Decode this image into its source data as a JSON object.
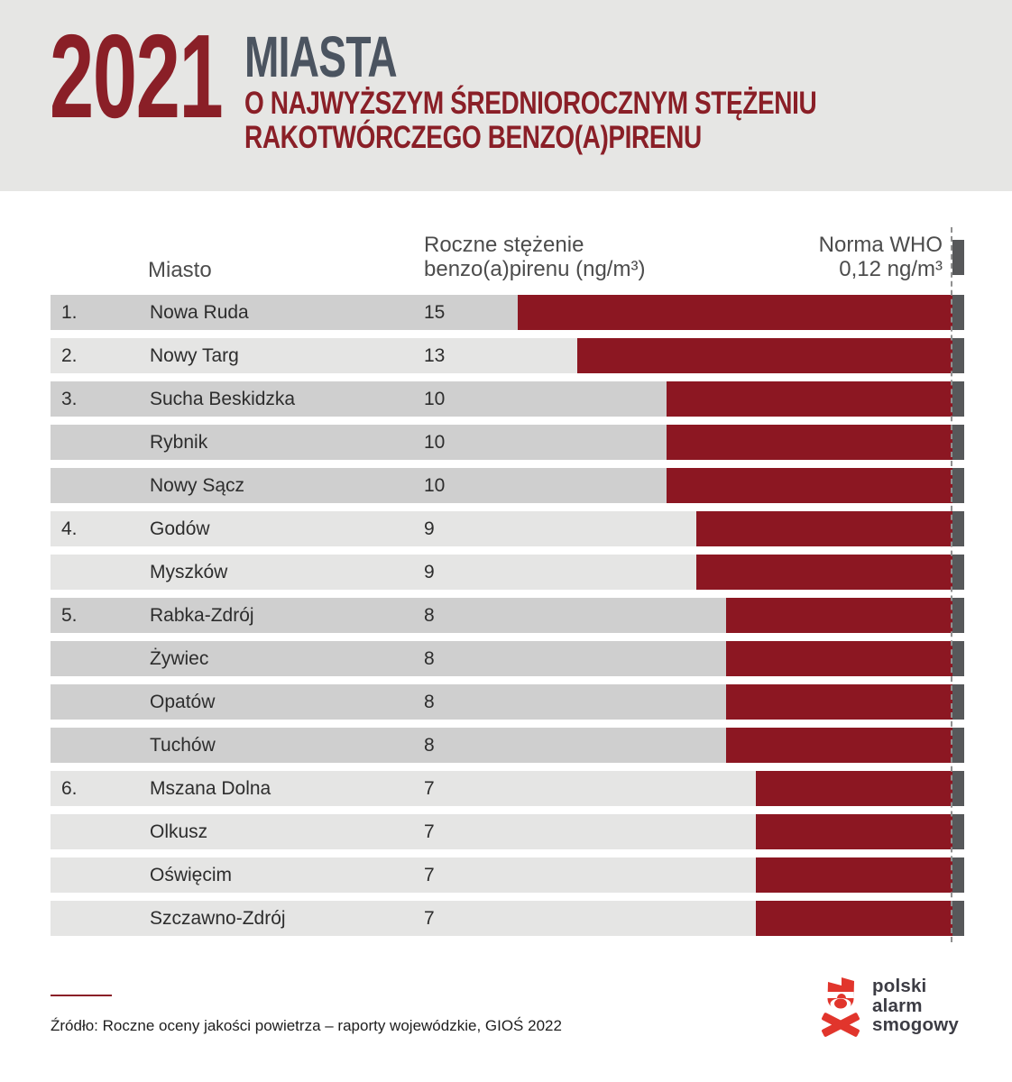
{
  "header": {
    "year": "2021",
    "title": "MIASTA",
    "subtitle_line1": "O NAJWYŻSZYM ŚREDNIOROCZNYM STĘŻENIU",
    "subtitle_line2": "RAKOTWÓRCZEGO BENZO(A)PIRENU"
  },
  "columns": {
    "city": "Miasto",
    "value_line1": "Roczne stężenie",
    "value_line2": "benzo(a)pirenu (ng/m³)",
    "norm_line1": "Norma WHO",
    "norm_line2": "0,12 ng/m³"
  },
  "rows": [
    {
      "rank": "1.",
      "city": "Nowa Ruda",
      "value": 15,
      "group": 1
    },
    {
      "rank": "2.",
      "city": "Nowy Targ",
      "value": 13,
      "group": 2
    },
    {
      "rank": "3.",
      "city": "Sucha Beskidzka",
      "value": 10,
      "group": 3
    },
    {
      "rank": "",
      "city": "Rybnik",
      "value": 10,
      "group": 3
    },
    {
      "rank": "",
      "city": "Nowy Sącz",
      "value": 10,
      "group": 3
    },
    {
      "rank": "4.",
      "city": "Godów",
      "value": 9,
      "group": 4
    },
    {
      "rank": "",
      "city": "Myszków",
      "value": 9,
      "group": 4
    },
    {
      "rank": "5.",
      "city": "Rabka-Zdrój",
      "value": 8,
      "group": 5
    },
    {
      "rank": "",
      "city": "Żywiec",
      "value": 8,
      "group": 5
    },
    {
      "rank": "",
      "city": "Opatów",
      "value": 8,
      "group": 5
    },
    {
      "rank": "",
      "city": "Tuchów",
      "value": 8,
      "group": 5
    },
    {
      "rank": "6.",
      "city": "Mszana Dolna",
      "value": 7,
      "group": 6
    },
    {
      "rank": "",
      "city": "Olkusz",
      "value": 7,
      "group": 6
    },
    {
      "rank": "",
      "city": "Oświęcim",
      "value": 7,
      "group": 6
    },
    {
      "rank": "",
      "city": "Szczawno-Zdrój",
      "value": 7,
      "group": 6
    }
  ],
  "chart_data": {
    "type": "bar",
    "orientation": "horizontal-right-anchored",
    "title": "2021 MIASTA o najwyższym średniorocznym stężeniu rakotwórczego benzo(a)pirenu",
    "xlabel": "Roczne stężenie benzo(a)pirenu (ng/m³)",
    "ylabel": "Miasto",
    "categories": [
      "Nowa Ruda",
      "Nowy Targ",
      "Sucha Beskidzka",
      "Rybnik",
      "Nowy Sącz",
      "Godów",
      "Myszków",
      "Rabka-Zdrój",
      "Żywiec",
      "Opatów",
      "Tuchów",
      "Mszana Dolna",
      "Olkusz",
      "Oświęcim",
      "Szczawno-Zdrój"
    ],
    "values": [
      15,
      13,
      10,
      10,
      10,
      9,
      9,
      8,
      8,
      8,
      8,
      7,
      7,
      7,
      7
    ],
    "ranks": [
      "1.",
      "2.",
      "3.",
      "",
      "",
      "4.",
      "",
      "5.",
      "",
      "",
      "",
      "6.",
      "",
      "",
      ""
    ],
    "reference_line": {
      "label": "Norma WHO",
      "value_label": "0,12 ng/m³",
      "value": 0.12
    },
    "unit": "ng/m³",
    "legend_position": "none",
    "grid": false
  },
  "footer": {
    "source": "Źródło: Roczne oceny jakości powietrza – raporty wojewódzkie, GIOŚ 2022",
    "logo_line1": "polski",
    "logo_line2": "alarm",
    "logo_line3": "smogowy"
  },
  "colors": {
    "band_bg": "#e6e6e4",
    "accent_red": "#8a1f27",
    "bar_red": "#8c1722",
    "title_gray": "#4b5460",
    "row_dark": "#cfcfcf",
    "row_light": "#e5e5e4",
    "norm_gray": "#57585a",
    "logo_red": "#e1352c"
  }
}
